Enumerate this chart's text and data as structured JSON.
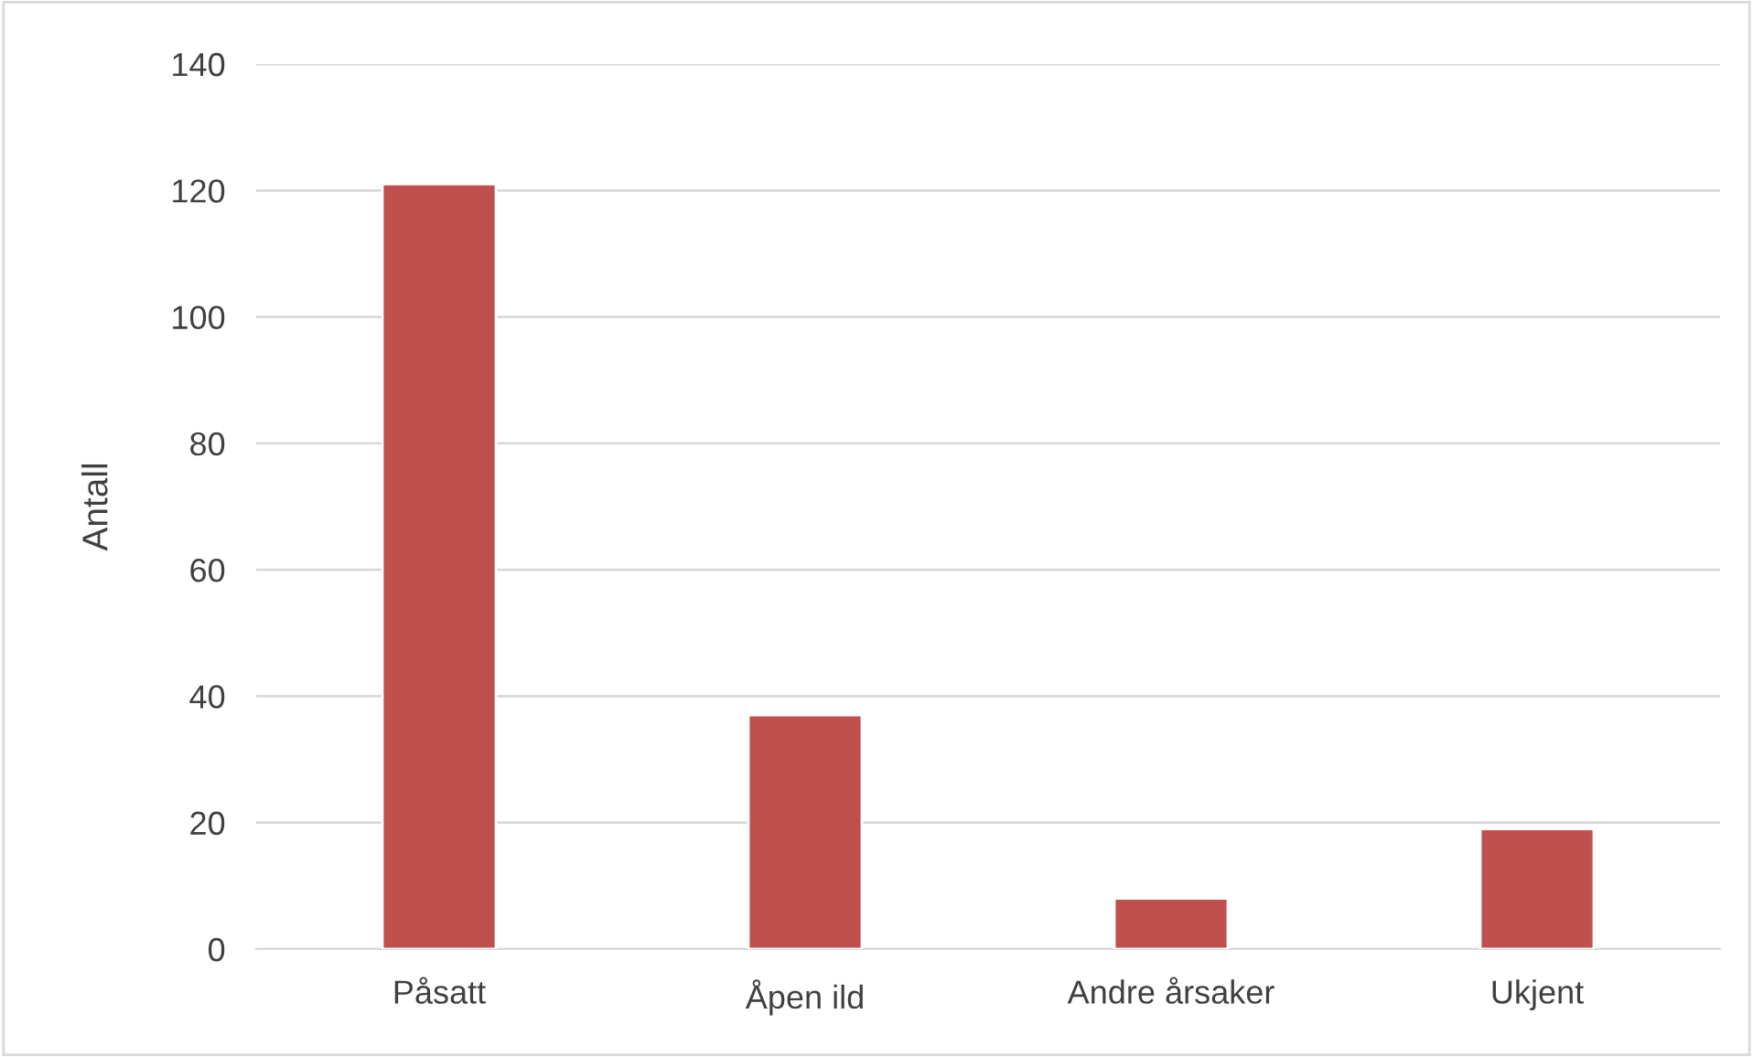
{
  "chart_data": {
    "type": "bar",
    "ylabel": "Antall",
    "categories": [
      "Påsatt",
      "Åpen ild",
      "Andre årsaker",
      "Ukjent"
    ],
    "values": [
      121,
      37,
      8,
      19
    ],
    "color": "#c0504d",
    "ylim": [
      0,
      140
    ],
    "yticks": [
      0,
      20,
      40,
      60,
      80,
      100,
      120,
      140
    ],
    "grid": "y",
    "legend": false
  }
}
